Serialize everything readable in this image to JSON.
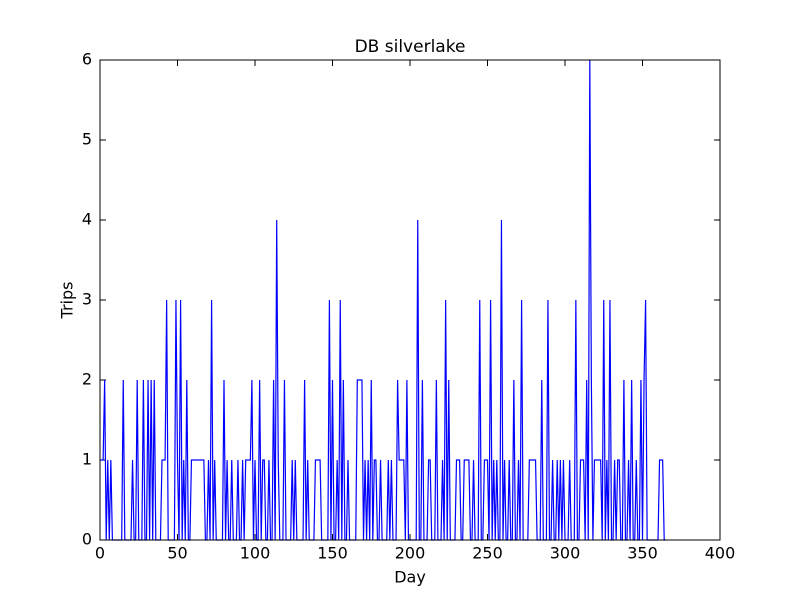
{
  "chart_data": {
    "type": "line",
    "title": "DB silverlake",
    "x_label": "Day",
    "y_label": "Trips",
    "x": [
      0,
      1,
      2,
      3,
      4,
      5,
      6,
      7,
      8,
      9,
      10,
      11,
      12,
      13,
      14,
      15,
      16,
      17,
      18,
      19,
      20,
      21,
      22,
      23,
      24,
      25,
      26,
      27,
      28,
      29,
      30,
      31,
      32,
      33,
      34,
      35,
      36,
      37,
      38,
      39,
      40,
      41,
      42,
      43,
      44,
      45,
      46,
      47,
      48,
      49,
      50,
      51,
      52,
      53,
      54,
      55,
      56,
      57,
      58,
      59,
      60,
      61,
      62,
      63,
      64,
      65,
      66,
      67,
      68,
      69,
      70,
      71,
      72,
      73,
      74,
      75,
      76,
      77,
      78,
      79,
      80,
      81,
      82,
      83,
      84,
      85,
      86,
      87,
      88,
      89,
      90,
      91,
      92,
      93,
      94,
      95,
      96,
      97,
      98,
      99,
      100,
      101,
      102,
      103,
      104,
      105,
      106,
      107,
      108,
      109,
      110,
      111,
      112,
      113,
      114,
      115,
      116,
      117,
      118,
      119,
      120,
      121,
      122,
      123,
      124,
      125,
      126,
      127,
      128,
      129,
      130,
      131,
      132,
      133,
      134,
      135,
      136,
      137,
      138,
      139,
      140,
      141,
      142,
      143,
      144,
      145,
      146,
      147,
      148,
      149,
      150,
      151,
      152,
      153,
      154,
      155,
      156,
      157,
      158,
      159,
      160,
      161,
      162,
      163,
      164,
      165,
      166,
      167,
      168,
      169,
      170,
      171,
      172,
      173,
      174,
      175,
      176,
      177,
      178,
      179,
      180,
      181,
      182,
      183,
      184,
      185,
      186,
      187,
      188,
      189,
      190,
      191,
      192,
      193,
      194,
      195,
      196,
      197,
      198,
      199,
      200,
      201,
      202,
      203,
      204,
      205,
      206,
      207,
      208,
      209,
      210,
      211,
      212,
      213,
      214,
      215,
      216,
      217,
      218,
      219,
      220,
      221,
      222,
      223,
      224,
      225,
      226,
      227,
      228,
      229,
      230,
      231,
      232,
      233,
      234,
      235,
      236,
      237,
      238,
      239,
      240,
      241,
      242,
      243,
      244,
      245,
      246,
      247,
      248,
      249,
      250,
      251,
      252,
      253,
      254,
      255,
      256,
      257,
      258,
      259,
      260,
      261,
      262,
      263,
      264,
      265,
      266,
      267,
      268,
      269,
      270,
      271,
      272,
      273,
      274,
      275,
      276,
      277,
      278,
      279,
      280,
      281,
      282,
      283,
      284,
      285,
      286,
      287,
      288,
      289,
      290,
      291,
      292,
      293,
      294,
      295,
      296,
      297,
      298,
      299,
      300,
      301,
      302,
      303,
      304,
      305,
      306,
      307,
      308,
      309,
      310,
      311,
      312,
      313,
      314,
      315,
      316,
      317,
      318,
      319,
      320,
      321,
      322,
      323,
      324,
      325,
      326,
      327,
      328,
      329,
      330,
      331,
      332,
      333,
      334,
      335,
      336,
      337,
      338,
      339,
      340,
      341,
      342,
      343,
      344,
      345,
      346,
      347,
      348,
      349,
      350,
      351,
      352,
      353,
      354,
      355,
      356,
      357,
      358,
      359,
      360,
      361,
      362,
      363,
      364,
      365
    ],
    "series": [
      {
        "color": "#0000ff",
        "values": [
          1,
          1,
          1,
          2,
          0,
          1,
          0,
          1,
          0,
          0,
          0,
          0,
          0,
          0,
          0,
          2,
          0,
          0,
          0,
          0,
          0,
          1,
          0,
          0,
          2,
          0,
          0,
          0,
          2,
          0,
          0,
          2,
          0,
          2,
          0,
          2,
          0,
          0,
          0,
          0,
          1,
          1,
          1,
          3,
          0,
          0,
          0,
          0,
          0,
          3,
          1,
          0,
          3,
          0,
          1,
          0,
          2,
          0,
          0,
          1,
          1,
          1,
          1,
          1,
          1,
          1,
          1,
          1,
          0,
          0,
          1,
          0,
          3,
          0,
          1,
          0,
          0,
          0,
          0,
          0,
          2,
          0,
          1,
          0,
          0,
          1,
          0,
          0,
          0,
          1,
          0,
          0,
          1,
          0,
          1,
          1,
          1,
          1,
          2,
          0,
          1,
          0,
          0,
          2,
          0,
          1,
          1,
          0,
          0,
          1,
          0,
          0,
          2,
          0,
          4,
          1,
          0,
          0,
          0,
          2,
          0,
          0,
          0,
          0,
          1,
          0,
          1,
          0,
          0,
          0,
          0,
          0,
          2,
          0,
          1,
          0,
          0,
          0,
          0,
          1,
          1,
          1,
          1,
          0,
          0,
          0,
          0,
          0,
          3,
          0,
          2,
          0,
          0,
          1,
          0,
          3,
          0,
          2,
          0,
          0,
          1,
          0,
          0,
          0,
          0,
          0,
          2,
          2,
          2,
          2,
          0,
          1,
          0,
          1,
          0,
          2,
          0,
          1,
          1,
          0,
          0,
          1,
          0,
          0,
          0,
          0,
          1,
          0,
          1,
          0,
          0,
          0,
          2,
          1,
          1,
          1,
          1,
          0,
          2,
          0,
          0,
          0,
          0,
          0,
          0,
          4,
          0,
          0,
          2,
          0,
          0,
          0,
          1,
          1,
          0,
          0,
          0,
          2,
          0,
          0,
          0,
          1,
          0,
          3,
          0,
          2,
          0,
          0,
          0,
          0,
          1,
          1,
          1,
          0,
          0,
          1,
          1,
          1,
          1,
          0,
          0,
          1,
          0,
          0,
          0,
          3,
          0,
          0,
          1,
          1,
          1,
          0,
          3,
          0,
          1,
          0,
          1,
          0,
          0,
          4,
          0,
          1,
          0,
          0,
          1,
          0,
          0,
          2,
          0,
          0,
          1,
          0,
          3,
          0,
          0,
          0,
          0,
          1,
          1,
          1,
          1,
          1,
          0,
          0,
          0,
          2,
          0,
          0,
          0,
          3,
          0,
          0,
          1,
          0,
          0,
          1,
          0,
          1,
          0,
          1,
          0,
          0,
          0,
          1,
          0,
          0,
          0,
          3,
          0,
          0,
          1,
          1,
          1,
          0,
          2,
          0,
          6,
          2,
          0,
          1,
          1,
          1,
          1,
          1,
          0,
          3,
          0,
          1,
          0,
          3,
          0,
          0,
          1,
          0,
          1,
          1,
          0,
          0,
          2,
          0,
          0,
          1,
          0,
          2,
          0,
          0,
          1,
          0,
          0,
          2,
          0,
          2,
          3,
          0,
          0,
          0,
          0,
          0,
          0,
          0,
          0,
          1,
          1,
          1,
          0,
          0
        ]
      }
    ],
    "xlim": [
      0,
      400
    ],
    "xticks": [
      0,
      50,
      100,
      150,
      200,
      250,
      300,
      350,
      400
    ],
    "ylim": [
      0,
      6
    ],
    "yticks": [
      0,
      1,
      2,
      3,
      4,
      5,
      6
    ],
    "grid": false
  }
}
